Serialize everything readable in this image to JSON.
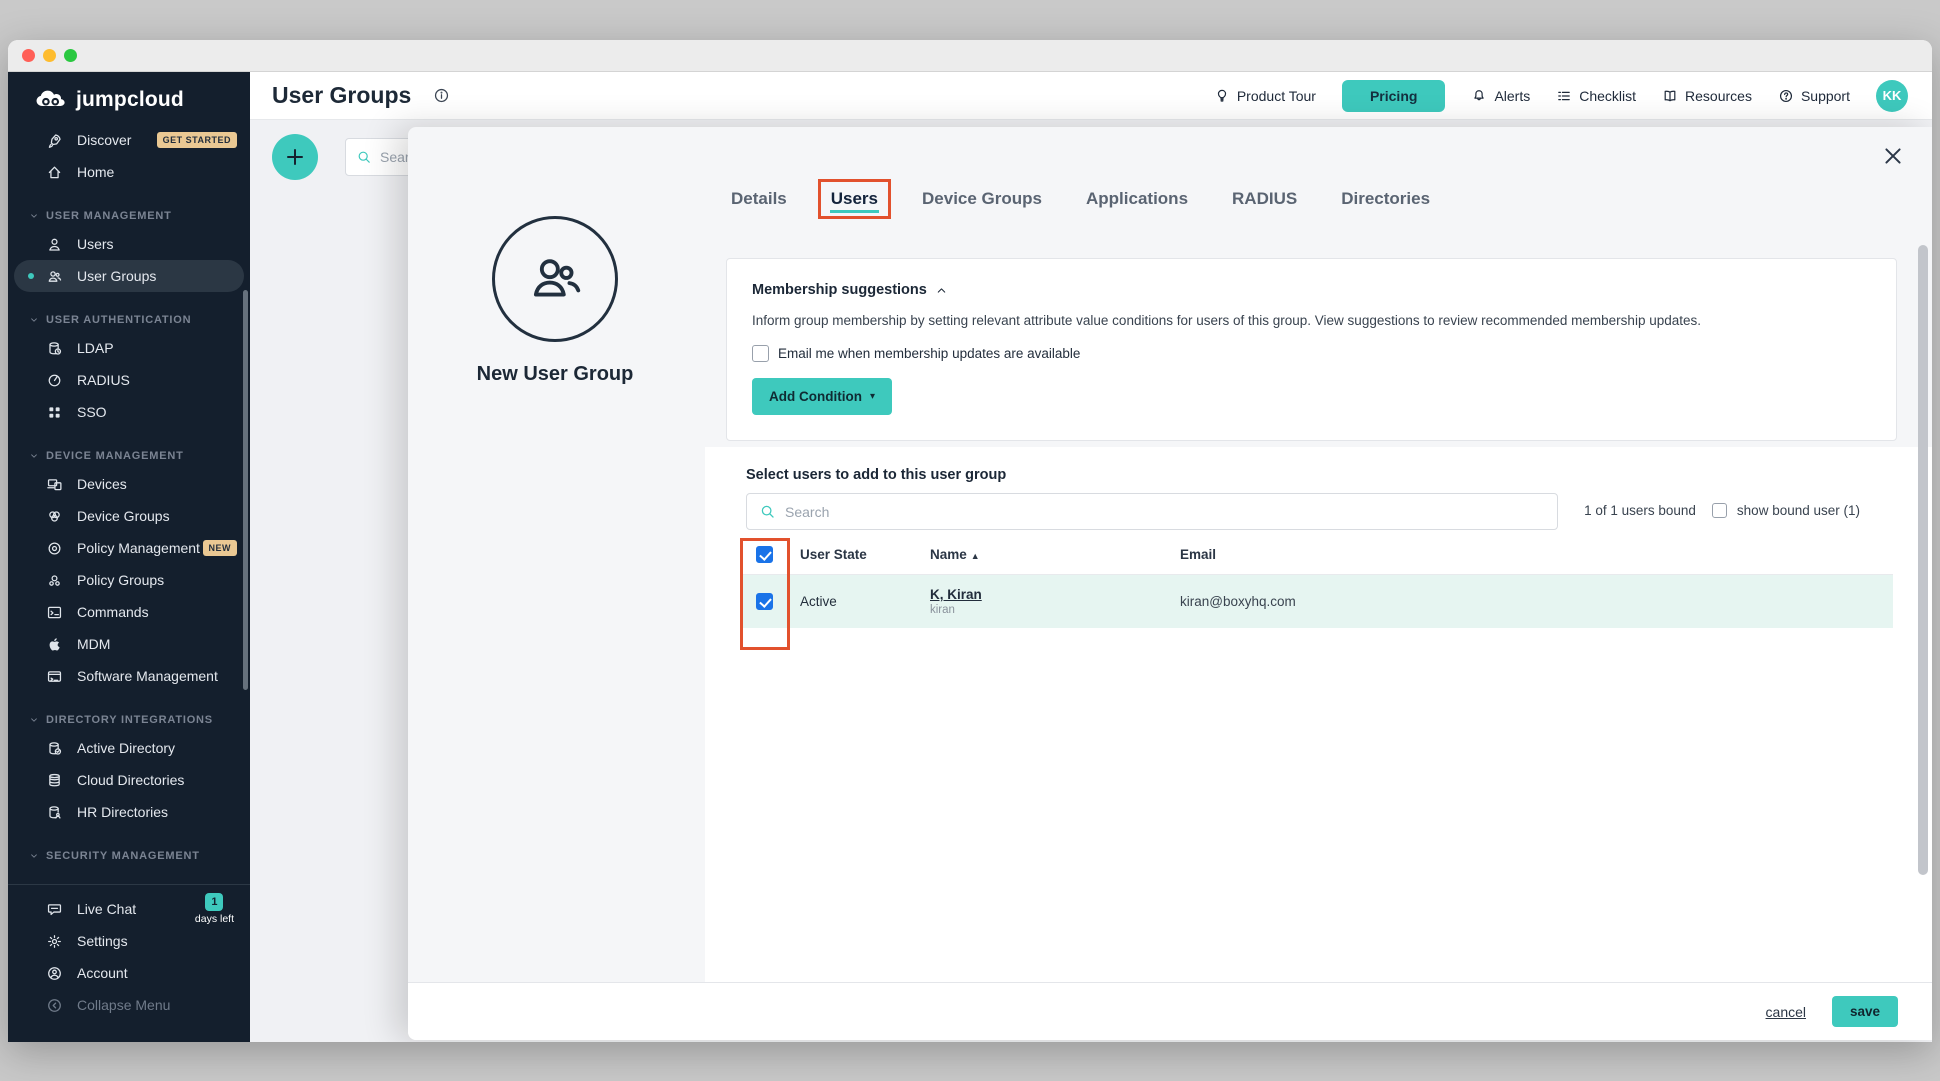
{
  "colors": {
    "teal": "#3ec9bd",
    "checkbox_blue": "#1a73e8",
    "annotation_orange": "#e2512d",
    "row_highlight": "#e6f5f1",
    "sidebar_bg": "#141f2d"
  },
  "sidebar": {
    "logo_text": "jumpcloud",
    "top_items": [
      {
        "icon": "rocket",
        "label": "Discover",
        "badge": "GET STARTED"
      },
      {
        "icon": "home",
        "label": "Home"
      }
    ],
    "sections": [
      {
        "title": "USER MANAGEMENT",
        "items": [
          {
            "icon": "user",
            "label": "Users"
          },
          {
            "icon": "users",
            "label": "User Groups",
            "active": true
          }
        ]
      },
      {
        "title": "USER AUTHENTICATION",
        "items": [
          {
            "icon": "db-clock",
            "label": "LDAP"
          },
          {
            "icon": "radius",
            "label": "RADIUS"
          },
          {
            "icon": "grid",
            "label": "SSO"
          }
        ]
      },
      {
        "title": "DEVICE MANAGEMENT",
        "items": [
          {
            "icon": "devices",
            "label": "Devices"
          },
          {
            "icon": "venn",
            "label": "Device Groups"
          },
          {
            "icon": "target",
            "label": "Policy Management",
            "badge": "NEW"
          },
          {
            "icon": "policy-groups",
            "label": "Policy Groups"
          },
          {
            "icon": "terminal",
            "label": "Commands"
          },
          {
            "icon": "apple",
            "label": "MDM"
          },
          {
            "icon": "software",
            "label": "Software Management"
          }
        ]
      },
      {
        "title": "DIRECTORY INTEGRATIONS",
        "items": [
          {
            "icon": "db-check",
            "label": "Active Directory"
          },
          {
            "icon": "db-stack",
            "label": "Cloud Directories"
          },
          {
            "icon": "db-user",
            "label": "HR Directories"
          }
        ]
      },
      {
        "title": "SECURITY MANAGEMENT",
        "items": []
      }
    ],
    "footer_items": [
      {
        "icon": "chat",
        "label": "Live Chat",
        "badge_value": "1",
        "badge_sub": "days left"
      },
      {
        "icon": "gear",
        "label": "Settings"
      },
      {
        "icon": "account",
        "label": "Account"
      },
      {
        "icon": "collapse",
        "label": "Collapse Menu",
        "disabled": true
      }
    ]
  },
  "header": {
    "title": "User Groups",
    "actions": [
      {
        "icon": "balloon",
        "label": "Product Tour"
      },
      {
        "label": "Pricing",
        "style": "button"
      },
      {
        "icon": "bell",
        "label": "Alerts"
      },
      {
        "icon": "checklist",
        "label": "Checklist"
      },
      {
        "icon": "book",
        "label": "Resources"
      },
      {
        "icon": "question",
        "label": "Support"
      }
    ],
    "avatar_initials": "KK"
  },
  "content": {
    "search_placeholder": "Search"
  },
  "drawer": {
    "group_name": "New User Group",
    "tabs": [
      {
        "label": "Details"
      },
      {
        "label": "Users",
        "active": true
      },
      {
        "label": "Device Groups"
      },
      {
        "label": "Applications"
      },
      {
        "label": "RADIUS"
      },
      {
        "label": "Directories"
      }
    ],
    "membership": {
      "title": "Membership suggestions",
      "description": "Inform group membership by setting relevant attribute value conditions for users of this group. View suggestions to review recommended membership updates.",
      "checkbox_label": "Email me when membership updates are available",
      "checkbox_checked": false,
      "button_label": "Add Condition"
    },
    "users_section": {
      "heading": "Select users to add to this user group",
      "search_placeholder": "Search",
      "bound_text": "1 of 1 users bound",
      "show_bound_label": "show bound user (1)",
      "show_bound_checked": false,
      "table": {
        "columns": [
          "User State",
          "Name",
          "Email"
        ],
        "sort_column": "Name",
        "sort_direction": "asc",
        "header_checkbox_checked": true,
        "rows": [
          {
            "checked": true,
            "state": "Active",
            "name": "K, Kiran",
            "username": "kiran",
            "email": "kiran@boxyhq.com"
          }
        ]
      }
    },
    "footer": {
      "cancel_label": "cancel",
      "save_label": "save"
    }
  }
}
